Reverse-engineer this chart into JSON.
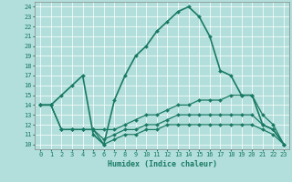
{
  "xlabel": "Humidex (Indice chaleur)",
  "bg_color": "#b2dfdb",
  "grid_color": "#ffffff",
  "line_color": "#1a7a64",
  "xlim": [
    -0.5,
    23.5
  ],
  "ylim": [
    9.5,
    24.5
  ],
  "xticks": [
    0,
    1,
    2,
    3,
    4,
    5,
    6,
    7,
    8,
    9,
    10,
    11,
    12,
    13,
    14,
    15,
    16,
    17,
    18,
    19,
    20,
    21,
    22,
    23
  ],
  "yticks": [
    10,
    11,
    12,
    13,
    14,
    15,
    16,
    17,
    18,
    19,
    20,
    21,
    22,
    23,
    24
  ],
  "lines": [
    {
      "x": [
        0,
        1,
        2,
        3,
        4,
        5,
        6,
        7,
        8,
        9,
        10,
        11,
        12,
        13,
        14,
        15,
        16,
        17,
        18,
        19,
        20,
        21,
        22,
        23
      ],
      "y": [
        14,
        14,
        15,
        16,
        17,
        11,
        10,
        14.5,
        17,
        19,
        20,
        21.5,
        22.5,
        23.5,
        24,
        23,
        21,
        17.5,
        17,
        15,
        15,
        12,
        11.5,
        10
      ],
      "marker": "D",
      "markersize": 2,
      "linewidth": 1.2
    },
    {
      "x": [
        0,
        1,
        2,
        3,
        4,
        5,
        6,
        7,
        8,
        9,
        10,
        11,
        12,
        13,
        14,
        15,
        16,
        17,
        18,
        19,
        20,
        21,
        22,
        23
      ],
      "y": [
        14,
        14,
        11.5,
        11.5,
        11.5,
        11.5,
        11.5,
        11.5,
        12,
        12.5,
        13,
        13,
        13.5,
        14,
        14,
        14.5,
        14.5,
        14.5,
        15,
        15,
        15,
        13,
        12,
        10
      ],
      "marker": "D",
      "markersize": 2,
      "linewidth": 0.9
    },
    {
      "x": [
        0,
        1,
        2,
        3,
        4,
        5,
        6,
        7,
        8,
        9,
        10,
        11,
        12,
        13,
        14,
        15,
        16,
        17,
        18,
        19,
        20,
        21,
        22,
        23
      ],
      "y": [
        14,
        14,
        11.5,
        11.5,
        11.5,
        11.5,
        10.5,
        11,
        11.5,
        11.5,
        12,
        12,
        12.5,
        13,
        13,
        13,
        13,
        13,
        13,
        13,
        13,
        12,
        11.5,
        10
      ],
      "marker": "D",
      "markersize": 2,
      "linewidth": 0.9
    },
    {
      "x": [
        0,
        1,
        2,
        3,
        4,
        5,
        6,
        7,
        8,
        9,
        10,
        11,
        12,
        13,
        14,
        15,
        16,
        17,
        18,
        19,
        20,
        21,
        22,
        23
      ],
      "y": [
        14,
        14,
        11.5,
        11.5,
        11.5,
        11.5,
        10.0,
        10.5,
        11,
        11,
        11.5,
        11.5,
        12,
        12,
        12,
        12,
        12,
        12,
        12,
        12,
        12,
        11.5,
        11,
        10
      ],
      "marker": "D",
      "markersize": 2,
      "linewidth": 0.9
    }
  ]
}
